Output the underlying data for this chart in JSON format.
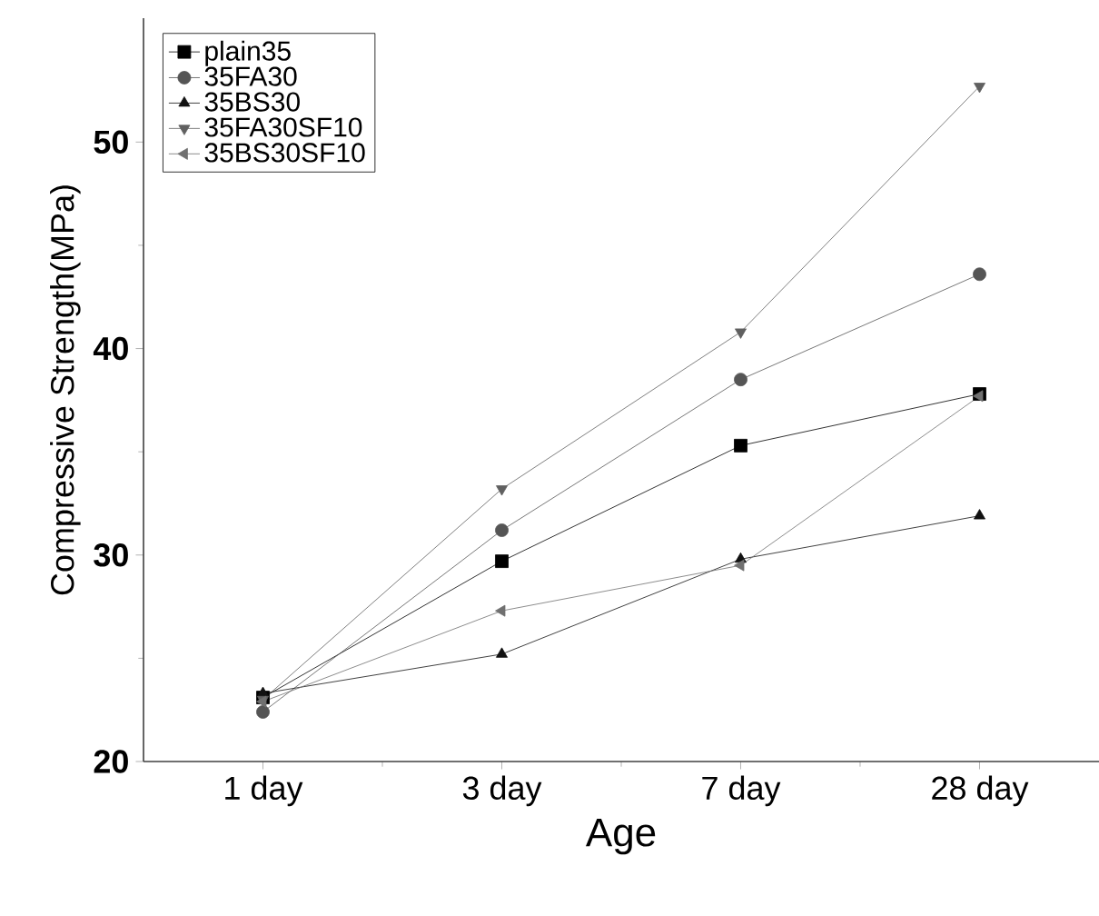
{
  "chart_data": {
    "type": "line",
    "xlabel": "Age",
    "ylabel": "Compressive Strength(MPa)",
    "categories": [
      "1 day",
      "3 day",
      "7 day",
      "28 day"
    ],
    "ylim": [
      20,
      56
    ],
    "yticks": [
      20,
      30,
      40,
      50
    ],
    "grid": false,
    "legend": "top left",
    "series": [
      {
        "name": "plain35",
        "color": "#000000",
        "marker": "square",
        "values": [
          23.1,
          29.7,
          35.3,
          37.8
        ]
      },
      {
        "name": "35FA30",
        "color": "#555555",
        "marker": "circle",
        "values": [
          22.4,
          31.2,
          38.5,
          43.6
        ]
      },
      {
        "name": "35BS30",
        "color": "#111111",
        "marker": "triangle",
        "values": [
          23.3,
          25.2,
          29.8,
          31.9
        ]
      },
      {
        "name": "35FA30SF10",
        "color": "#606060",
        "marker": "triangle down",
        "values": [
          23.0,
          33.2,
          40.8,
          52.7
        ]
      },
      {
        "name": "35BS30SF10",
        "color": "#707070",
        "marker": "triangle left",
        "values": [
          22.9,
          27.3,
          29.5,
          37.7
        ]
      }
    ]
  }
}
